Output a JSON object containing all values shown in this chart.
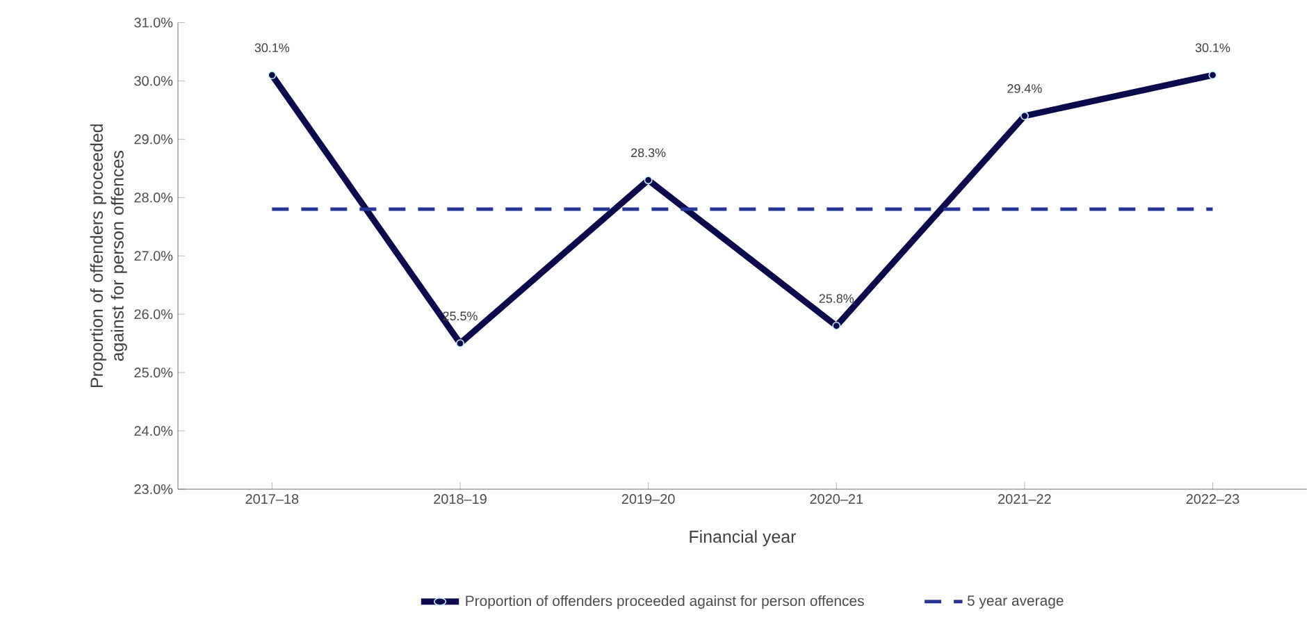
{
  "chart_data": {
    "type": "line",
    "xlabel": "Financial year",
    "ylabel": "Proportion of offenders proceeded against for person offences",
    "categories": [
      "2017–18",
      "2018–19",
      "2019–20",
      "2020–21",
      "2021–22",
      "2022–23"
    ],
    "series": [
      {
        "name": "Proportion of offenders proceeded against for person offences",
        "color": "#0d0a4b",
        "values": [
          30.1,
          25.5,
          28.3,
          25.8,
          29.4,
          30.1
        ],
        "value_labels": [
          "30.1%",
          "25.5%",
          "28.3%",
          "25.8%",
          "29.4%",
          "30.1%"
        ],
        "marker": "circle",
        "line_style": "solid"
      },
      {
        "name": "5 year average",
        "color": "#283593",
        "values": [
          27.8,
          27.8,
          27.8,
          27.8,
          27.8,
          27.8
        ],
        "marker": "none",
        "line_style": "dashed"
      }
    ],
    "ylim": [
      23,
      31
    ],
    "yticks": [
      {
        "value": 23,
        "label": "23.0%"
      },
      {
        "value": 24,
        "label": "24.0%"
      },
      {
        "value": 25,
        "label": "25.0%"
      },
      {
        "value": 26,
        "label": "26.0%"
      },
      {
        "value": 27,
        "label": "27.0%"
      },
      {
        "value": 28,
        "label": "28.0%"
      },
      {
        "value": 29,
        "label": "29.0%"
      },
      {
        "value": 30,
        "label": "30.0%"
      },
      {
        "value": 31,
        "label": "31.0%"
      }
    ],
    "grid": false,
    "legend": "bottom"
  }
}
